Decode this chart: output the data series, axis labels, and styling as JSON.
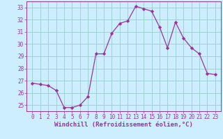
{
  "x": [
    0,
    1,
    2,
    3,
    4,
    5,
    6,
    7,
    8,
    9,
    10,
    11,
    12,
    13,
    14,
    15,
    16,
    17,
    18,
    19,
    20,
    21,
    22,
    23
  ],
  "y": [
    26.8,
    26.7,
    26.6,
    26.2,
    24.8,
    24.8,
    25.0,
    25.7,
    29.2,
    29.2,
    30.9,
    31.7,
    31.9,
    33.1,
    32.9,
    32.7,
    31.4,
    29.7,
    31.8,
    30.5,
    29.7,
    29.2,
    27.6,
    27.5
  ],
  "line_color": "#993399",
  "marker": "D",
  "marker_size": 2.2,
  "bg_color": "#cceeff",
  "grid_color": "#99cccc",
  "xlabel": "Windchill (Refroidissement éolien,°C)",
  "xlabel_fontsize": 6.5,
  "tick_fontsize": 5.5,
  "ylim": [
    24.5,
    33.5
  ],
  "yticks": [
    25,
    26,
    27,
    28,
    29,
    30,
    31,
    32,
    33
  ],
  "xticks": [
    0,
    1,
    2,
    3,
    4,
    5,
    6,
    7,
    8,
    9,
    10,
    11,
    12,
    13,
    14,
    15,
    16,
    17,
    18,
    19,
    20,
    21,
    22,
    23
  ],
  "line_width": 0.9,
  "xlim_left": -0.7,
  "xlim_right": 23.7
}
